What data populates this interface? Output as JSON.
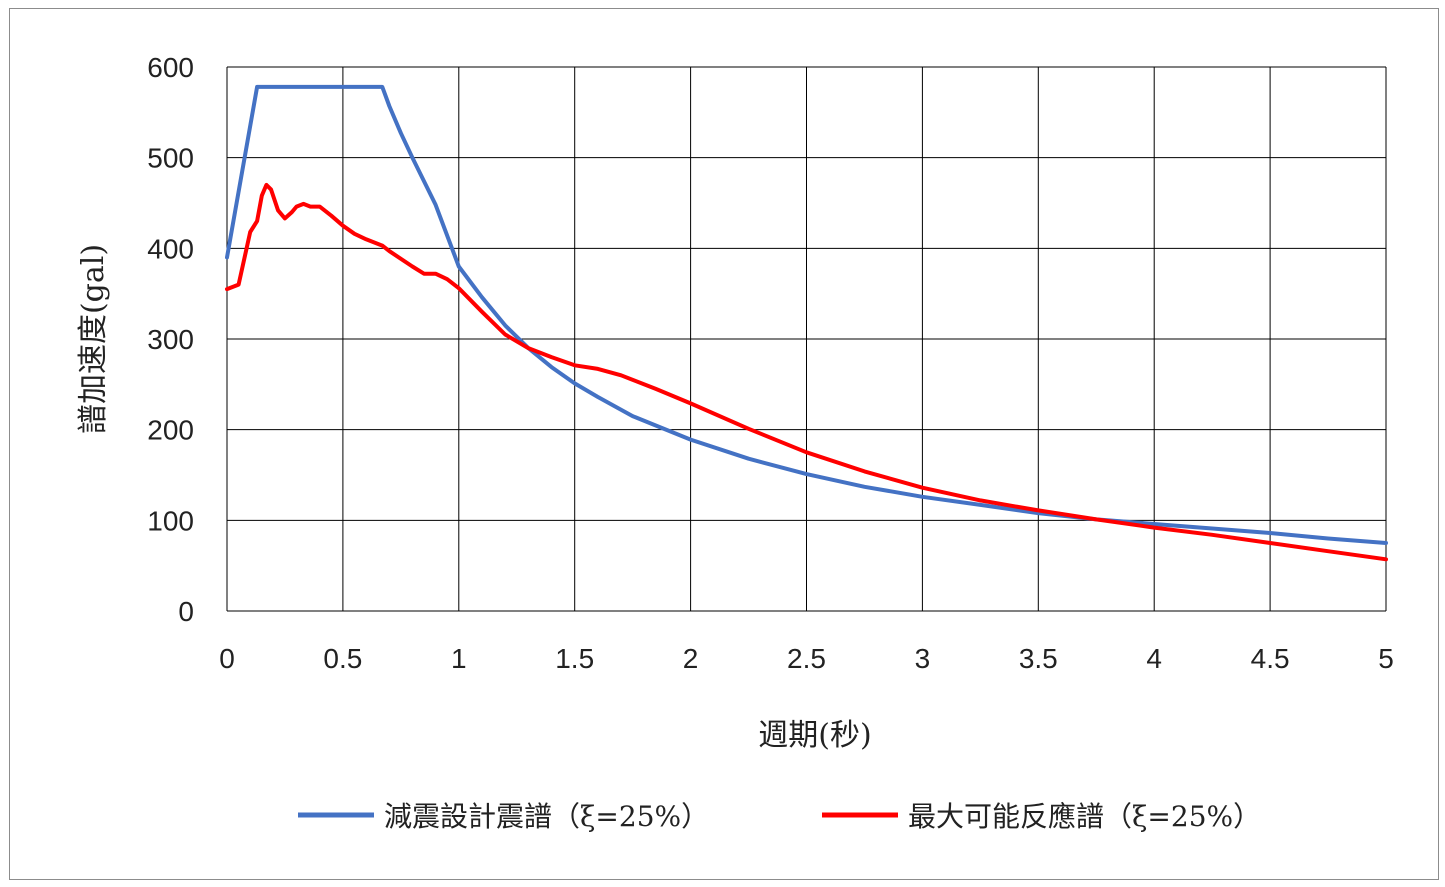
{
  "chart_data": {
    "type": "line",
    "title": "",
    "xlabel": "週期(秒)",
    "ylabel": "譜加速度(gal)",
    "xlim": [
      0,
      5
    ],
    "ylim": [
      0,
      600
    ],
    "x_ticks": [
      "0",
      "0.5",
      "1",
      "1.5",
      "2",
      "2.5",
      "3",
      "3.5",
      "4",
      "4.5",
      "5"
    ],
    "y_ticks": [
      "0",
      "100",
      "200",
      "300",
      "400",
      "500",
      "600"
    ],
    "x_tick_values": [
      0,
      0.5,
      1,
      1.5,
      2,
      2.5,
      3,
      3.5,
      4,
      4.5,
      5
    ],
    "y_tick_values": [
      0,
      100,
      200,
      300,
      400,
      500,
      600
    ],
    "grid": true,
    "legend_position": "bottom",
    "series": [
      {
        "name": "減震設計震譜（ξ=25%）",
        "color": "#4472C4",
        "points": [
          [
            0,
            390
          ],
          [
            0.13,
            578
          ],
          [
            0.67,
            578
          ],
          [
            0.7,
            557
          ],
          [
            0.75,
            527
          ],
          [
            0.8,
            500
          ],
          [
            0.9,
            448
          ],
          [
            1.0,
            380
          ],
          [
            1.1,
            346
          ],
          [
            1.2,
            315
          ],
          [
            1.3,
            290
          ],
          [
            1.4,
            269
          ],
          [
            1.5,
            251
          ],
          [
            1.6,
            236
          ],
          [
            1.75,
            215
          ],
          [
            2.0,
            189
          ],
          [
            2.25,
            168
          ],
          [
            2.5,
            151
          ],
          [
            2.75,
            137
          ],
          [
            3.0,
            126
          ],
          [
            3.25,
            117
          ],
          [
            3.5,
            108
          ],
          [
            3.75,
            101
          ],
          [
            4.0,
            96
          ],
          [
            4.25,
            91
          ],
          [
            4.5,
            86
          ],
          [
            4.75,
            80
          ],
          [
            5.0,
            75
          ]
        ]
      },
      {
        "name": "最大可能反應譜（ξ=25%）",
        "color": "#FF0000",
        "points": [
          [
            0,
            355
          ],
          [
            0.05,
            360
          ],
          [
            0.1,
            418
          ],
          [
            0.13,
            430
          ],
          [
            0.15,
            458
          ],
          [
            0.17,
            470
          ],
          [
            0.19,
            465
          ],
          [
            0.22,
            442
          ],
          [
            0.25,
            433
          ],
          [
            0.28,
            440
          ],
          [
            0.3,
            446
          ],
          [
            0.33,
            449
          ],
          [
            0.36,
            446
          ],
          [
            0.4,
            446
          ],
          [
            0.45,
            436
          ],
          [
            0.5,
            425
          ],
          [
            0.55,
            416
          ],
          [
            0.6,
            410
          ],
          [
            0.67,
            403
          ],
          [
            0.7,
            397
          ],
          [
            0.8,
            380
          ],
          [
            0.85,
            372
          ],
          [
            0.9,
            372
          ],
          [
            0.95,
            366
          ],
          [
            1.0,
            356
          ],
          [
            1.1,
            330
          ],
          [
            1.2,
            305
          ],
          [
            1.3,
            290
          ],
          [
            1.4,
            280
          ],
          [
            1.5,
            271
          ],
          [
            1.6,
            267
          ],
          [
            1.7,
            260
          ],
          [
            1.85,
            245
          ],
          [
            2.0,
            229
          ],
          [
            2.25,
            201
          ],
          [
            2.5,
            175
          ],
          [
            2.75,
            154
          ],
          [
            3.0,
            136
          ],
          [
            3.25,
            122
          ],
          [
            3.5,
            111
          ],
          [
            3.75,
            101
          ],
          [
            4.0,
            92
          ],
          [
            4.25,
            84
          ],
          [
            4.5,
            75
          ],
          [
            4.75,
            66
          ],
          [
            5.0,
            57
          ]
        ]
      }
    ]
  }
}
